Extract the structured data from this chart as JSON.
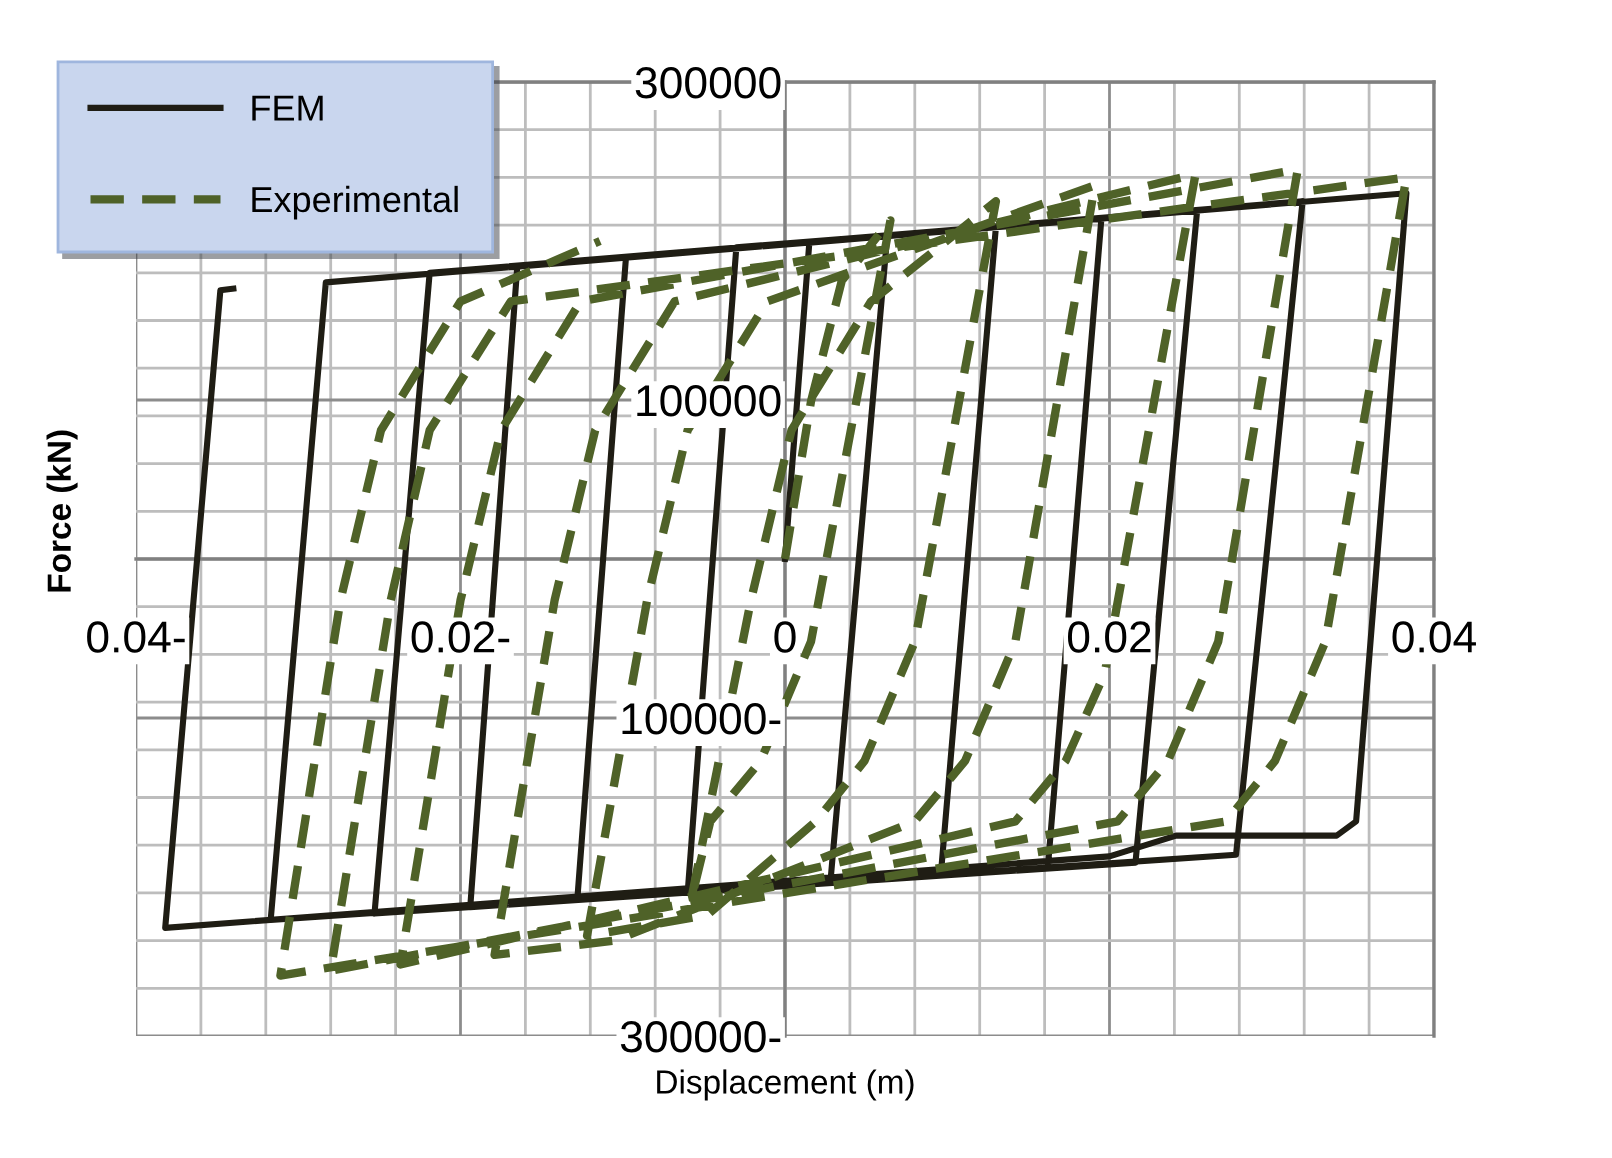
{
  "chart_data": {
    "type": "line",
    "xlabel": "Displacement (m)",
    "ylabel": "Force (kN)",
    "xlim": [
      -0.04,
      0.04
    ],
    "ylim": [
      -300000,
      300000
    ],
    "xticks": [
      {
        "value": -0.04,
        "label": "0.04-"
      },
      {
        "value": -0.036,
        "label": null
      },
      {
        "value": -0.032,
        "label": null
      },
      {
        "value": -0.028,
        "label": null
      },
      {
        "value": -0.024,
        "label": null
      },
      {
        "value": -0.02,
        "label": "0.02-"
      },
      {
        "value": -0.016,
        "label": null
      },
      {
        "value": -0.012,
        "label": null
      },
      {
        "value": -0.008,
        "label": null
      },
      {
        "value": -0.004,
        "label": null
      },
      {
        "value": 0,
        "label": "0"
      },
      {
        "value": 0.004,
        "label": null
      },
      {
        "value": 0.008,
        "label": null
      },
      {
        "value": 0.012,
        "label": null
      },
      {
        "value": 0.016,
        "label": null
      },
      {
        "value": 0.02,
        "label": "0.02"
      },
      {
        "value": 0.024,
        "label": null
      },
      {
        "value": 0.028,
        "label": null
      },
      {
        "value": 0.032,
        "label": null
      },
      {
        "value": 0.036,
        "label": null
      },
      {
        "value": 0.04,
        "label": "0.04"
      }
    ],
    "yticks": [
      {
        "value": -300000,
        "label": "300000-"
      },
      {
        "value": -270000,
        "label": null
      },
      {
        "value": -240000,
        "label": null
      },
      {
        "value": -210000,
        "label": null
      },
      {
        "value": -180000,
        "label": null
      },
      {
        "value": -150000,
        "label": null
      },
      {
        "value": -120000,
        "label": null
      },
      {
        "value": -100000,
        "label": "100000-"
      },
      {
        "value": -90000,
        "label": null
      },
      {
        "value": -60000,
        "label": null
      },
      {
        "value": -30000,
        "label": null
      },
      {
        "value": 0,
        "label": null
      },
      {
        "value": 30000,
        "label": null
      },
      {
        "value": 60000,
        "label": null
      },
      {
        "value": 90000,
        "label": null
      },
      {
        "value": 100000,
        "label": "100000"
      },
      {
        "value": 120000,
        "label": null
      },
      {
        "value": 150000,
        "label": null
      },
      {
        "value": 180000,
        "label": null
      },
      {
        "value": 210000,
        "label": null
      },
      {
        "value": 240000,
        "label": null
      },
      {
        "value": 270000,
        "label": null
      },
      {
        "value": 300000,
        "label": "300000"
      }
    ],
    "grid": true,
    "legend": "top left",
    "marker": "none",
    "series": [
      {
        "name": "FEM",
        "color": "#1f1d14",
        "line_style": "solid",
        "x": [
          0,
          0.0015,
          0.0063,
          0.0028,
          -0.006,
          -0.003,
          0.013,
          0.0096,
          -0.0128,
          -0.0098,
          0.0195,
          0.0162,
          -0.0194,
          -0.0165,
          0.0254,
          0.0216,
          -0.0253,
          -0.0219,
          0.0319,
          0.0278,
          -0.0317,
          -0.0283,
          0.0383,
          0.0352,
          0.034,
          0.0241,
          0.02,
          -0.0382,
          -0.0348,
          -0.034
        ],
        "values": [
          0,
          199000,
          203000,
          -203000,
          -210000,
          196000,
          209000,
          -199000,
          -214000,
          190000,
          214000,
          -194000,
          -219000,
          184000,
          219000,
          -191000,
          -223000,
          180000,
          225000,
          -186000,
          -227000,
          174000,
          230000,
          -165000,
          -174000,
          -174000,
          -187000,
          -232000,
          169000,
          170000
        ]
      },
      {
        "name": "Experimental",
        "color": "#4f6228",
        "line_style": "dashed",
        "x": [
          0,
          0.0016,
          0.0035,
          0.0065,
          0.0016,
          -0.0015,
          -0.0046,
          -0.0058,
          -0.0021,
          0.0004,
          0.0053,
          0.013,
          0.008,
          0.0049,
          0.0019,
          -0.0048,
          -0.0122,
          -0.0085,
          -0.006,
          -0.0011,
          0.0191,
          0.0142,
          0.0111,
          0.008,
          -0.0105,
          -0.0179,
          -0.0142,
          -0.0117,
          -0.0068,
          0.0253,
          0.0197,
          0.0173,
          0.0142,
          -0.0237,
          -0.02,
          -0.0175,
          -0.0126,
          0.0316,
          0.0267,
          0.0236,
          0.0205,
          -0.028,
          -0.0243,
          -0.0219,
          -0.0169,
          0.0383,
          0.0333,
          0.0302,
          0.0272,
          -0.0311,
          -0.0274,
          -0.0249,
          -0.02,
          -0.0114
        ],
        "values": [
          0,
          99000,
          175000,
          213000,
          -52000,
          -127000,
          -165000,
          -215000,
          -26000,
          81000,
          162000,
          225000,
          -52000,
          -127000,
          -165000,
          -224000,
          -237000,
          -26000,
          81000,
          162000,
          235000,
          -52000,
          -127000,
          -165000,
          -240000,
          -249000,
          -26000,
          81000,
          162000,
          242000,
          -72000,
          -127000,
          -165000,
          -255000,
          -26000,
          81000,
          162000,
          245000,
          -52000,
          -127000,
          -165000,
          -259000,
          -26000,
          81000,
          162000,
          240000,
          -52000,
          -127000,
          -165000,
          -262000,
          -26000,
          81000,
          162000,
          200000
        ]
      }
    ]
  }
}
